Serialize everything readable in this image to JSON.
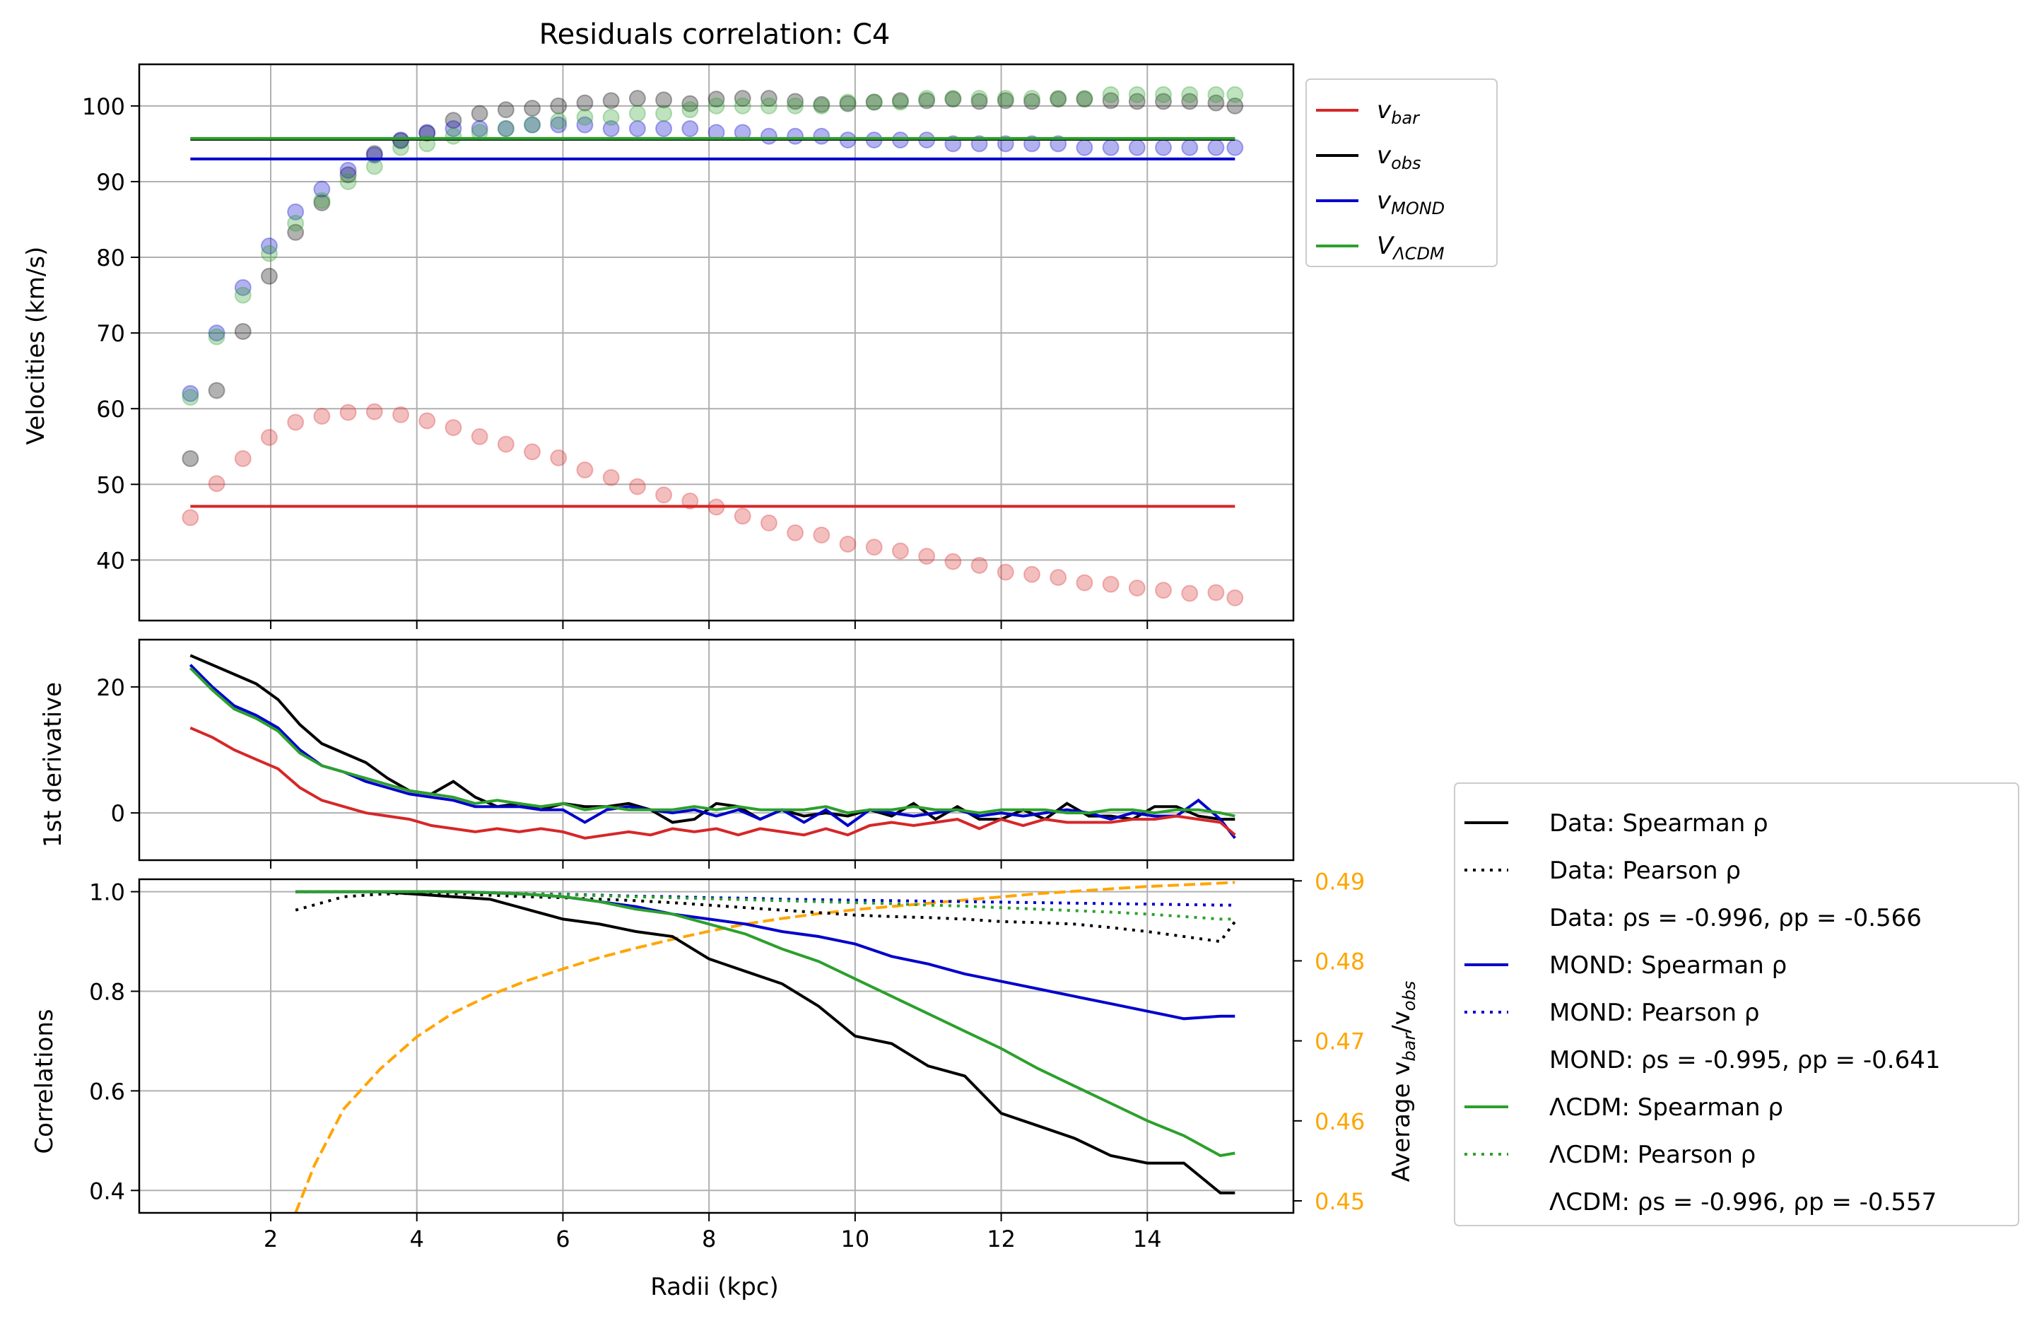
{
  "title": "Residuals correlation: C4",
  "colors": {
    "bar": "#d62728",
    "obs": "#000000",
    "mond": "#0000cc",
    "lcdm": "#2ca02c",
    "ratio": "#ffa500",
    "grid": "#b0b0b0"
  },
  "chart_data": [
    {
      "type": "scatter",
      "panel": "velocities",
      "title": "Residuals correlation: C4",
      "xlabel": "",
      "ylabel": "Velocities (km/s)",
      "xlim": [
        0.2,
        16.0
      ],
      "ylim": [
        32,
        105.5
      ],
      "yticks": [
        40,
        50,
        60,
        70,
        80,
        90,
        100
      ],
      "grid": true,
      "legend": "outside-right-top",
      "legend_entries": [
        {
          "base": "v",
          "sub": "bar",
          "color": "#d62728"
        },
        {
          "base": "v",
          "sub": "obs",
          "color": "#000000"
        },
        {
          "base": "v",
          "sub": "MOND",
          "color": "#0000cc"
        },
        {
          "base": "V",
          "sub": "ΛCDM",
          "color": "#2ca02c"
        }
      ],
      "x": [
        0.9,
        1.26,
        1.62,
        1.98,
        2.34,
        2.7,
        3.06,
        3.42,
        3.78,
        4.14,
        4.5,
        4.86,
        5.22,
        5.58,
        5.94,
        6.3,
        6.66,
        7.02,
        7.38,
        7.74,
        8.1,
        8.46,
        8.82,
        9.18,
        9.54,
        9.9,
        10.26,
        10.62,
        10.98,
        11.34,
        11.7,
        12.06,
        12.42,
        12.78,
        13.14,
        13.5,
        13.86,
        14.22,
        14.58,
        14.94,
        15.2
      ],
      "series": [
        {
          "name": "v_bar",
          "color": "#d62728",
          "points": [
            45.6,
            50.1,
            53.4,
            56.2,
            58.2,
            59.0,
            59.5,
            59.6,
            59.2,
            58.4,
            57.5,
            56.3,
            55.3,
            54.3,
            53.5,
            51.9,
            50.9,
            49.7,
            48.6,
            47.8,
            47.0,
            45.8,
            44.9,
            43.6,
            43.3,
            42.1,
            41.7,
            41.2,
            40.5,
            39.8,
            39.3,
            38.4,
            38.1,
            37.7,
            37.0,
            36.8,
            36.3,
            36.0,
            35.6,
            35.7,
            35.0
          ],
          "line": 47.1
        },
        {
          "name": "v_obs",
          "color": "#000000",
          "points": [
            53.4,
            62.4,
            70.2,
            77.5,
            83.3,
            87.2,
            90.9,
            93.7,
            95.4,
            96.4,
            98.1,
            99.0,
            99.5,
            99.7,
            100.0,
            100.4,
            100.7,
            101.0,
            100.8,
            100.3,
            100.9,
            101.0,
            101.0,
            100.6,
            100.2,
            100.3,
            100.5,
            100.7,
            100.7,
            100.9,
            100.6,
            100.7,
            100.6,
            100.9,
            100.9,
            100.7,
            100.6,
            100.6,
            100.6,
            100.4,
            100.0
          ],
          "line": 95.6
        },
        {
          "name": "v_MOND",
          "color": "#0000cc",
          "points": [
            62.0,
            70.0,
            76.0,
            81.5,
            86.0,
            89.0,
            91.5,
            93.5,
            95.5,
            96.5,
            97.0,
            97.0,
            97.0,
            97.5,
            97.5,
            97.5,
            97.0,
            97.0,
            97.0,
            97.0,
            96.5,
            96.5,
            96.0,
            96.0,
            96.0,
            95.5,
            95.5,
            95.5,
            95.5,
            95.0,
            95.0,
            95.0,
            95.0,
            95.0,
            94.5,
            94.5,
            94.5,
            94.5,
            94.5,
            94.5,
            94.5
          ],
          "line": 93.0
        },
        {
          "name": "V_LCDM",
          "color": "#2ca02c",
          "points": [
            61.5,
            69.5,
            75.0,
            80.5,
            84.5,
            87.5,
            90.0,
            92.0,
            94.5,
            95.0,
            96.0,
            96.5,
            97.0,
            97.5,
            98.0,
            98.5,
            98.5,
            99.0,
            99.0,
            99.5,
            100.0,
            100.0,
            100.0,
            100.0,
            100.0,
            100.5,
            100.5,
            100.5,
            101.0,
            101.0,
            101.0,
            101.0,
            101.0,
            101.0,
            101.0,
            101.5,
            101.5,
            101.5,
            101.5,
            101.5,
            101.5
          ],
          "line": 95.7
        }
      ]
    },
    {
      "type": "line",
      "panel": "derivative",
      "xlabel": "",
      "ylabel": "1st derivative",
      "xlim": [
        0.2,
        16.0
      ],
      "ylim": [
        -7.5,
        27.5
      ],
      "yticks": [
        0,
        20
      ],
      "grid": true,
      "x": [
        0.9,
        1.2,
        1.5,
        1.8,
        2.1,
        2.4,
        2.7,
        3.0,
        3.3,
        3.6,
        3.9,
        4.2,
        4.5,
        4.8,
        5.1,
        5.4,
        5.7,
        6.0,
        6.3,
        6.6,
        6.9,
        7.2,
        7.5,
        7.8,
        8.1,
        8.4,
        8.7,
        9.0,
        9.3,
        9.6,
        9.9,
        10.2,
        10.5,
        10.8,
        11.1,
        11.4,
        11.7,
        12.0,
        12.3,
        12.6,
        12.9,
        13.2,
        13.5,
        13.8,
        14.1,
        14.4,
        14.7,
        15.0,
        15.2
      ],
      "series": [
        {
          "name": "v_obs",
          "color": "#000000",
          "values": [
            25.0,
            23.5,
            22.0,
            20.5,
            18.0,
            14.0,
            11.0,
            9.5,
            8.0,
            5.5,
            3.5,
            3.0,
            5.0,
            2.5,
            1.0,
            1.5,
            0.5,
            1.5,
            1.0,
            1.0,
            1.5,
            0.5,
            -1.5,
            -1.0,
            1.5,
            1.0,
            -1.0,
            0.5,
            -0.5,
            0.0,
            -0.5,
            0.5,
            -0.5,
            1.5,
            -1.0,
            1.0,
            -1.0,
            -1.0,
            0.5,
            -1.0,
            1.5,
            -0.5,
            -0.5,
            -1.0,
            1.0,
            1.0,
            -0.5,
            -1.0,
            -1.0
          ]
        },
        {
          "name": "v_MOND",
          "color": "#0000cc",
          "values": [
            23.5,
            20.0,
            17.0,
            15.5,
            13.5,
            10.0,
            7.5,
            6.5,
            5.0,
            4.0,
            3.0,
            2.5,
            2.0,
            1.0,
            1.0,
            1.0,
            0.5,
            0.5,
            -1.5,
            0.5,
            1.0,
            0.5,
            0.0,
            0.5,
            -0.5,
            0.5,
            -1.0,
            0.5,
            -1.5,
            0.5,
            -2.0,
            0.5,
            0.0,
            -0.5,
            0.0,
            0.5,
            -0.5,
            0.0,
            -0.5,
            0.0,
            0.5,
            0.0,
            -1.0,
            0.0,
            -0.5,
            -0.5,
            2.0,
            -1.0,
            -4.0
          ]
        },
        {
          "name": "V_LCDM",
          "color": "#2ca02c",
          "values": [
            23.0,
            19.5,
            16.5,
            15.0,
            13.0,
            9.5,
            7.5,
            6.5,
            5.5,
            4.5,
            3.5,
            3.0,
            2.5,
            1.5,
            2.0,
            1.5,
            1.0,
            1.5,
            0.5,
            1.0,
            0.5,
            0.5,
            0.5,
            1.0,
            0.5,
            1.0,
            0.5,
            0.5,
            0.5,
            1.0,
            0.0,
            0.5,
            0.5,
            1.0,
            0.5,
            0.5,
            0.0,
            0.5,
            0.5,
            0.5,
            0.0,
            0.0,
            0.5,
            0.5,
            0.0,
            0.5,
            0.5,
            0.0,
            -0.5
          ]
        },
        {
          "name": "v_bar",
          "color": "#d62728",
          "values": [
            13.5,
            12.0,
            10.0,
            8.5,
            7.0,
            4.0,
            2.0,
            1.0,
            0.0,
            -0.5,
            -1.0,
            -2.0,
            -2.5,
            -3.0,
            -2.5,
            -3.0,
            -2.5,
            -3.0,
            -4.0,
            -3.5,
            -3.0,
            -3.5,
            -2.5,
            -3.0,
            -2.5,
            -3.5,
            -2.5,
            -3.0,
            -3.5,
            -2.5,
            -3.5,
            -2.0,
            -1.5,
            -2.0,
            -1.5,
            -1.0,
            -2.5,
            -1.0,
            -2.0,
            -1.0,
            -1.5,
            -1.5,
            -1.5,
            -1.0,
            -1.0,
            -0.5,
            -1.0,
            -1.5,
            -3.5
          ]
        }
      ]
    },
    {
      "type": "line",
      "panel": "correlations",
      "xlabel": "Radii (kpc)",
      "ylabel": "Correlations",
      "y2label_base": "Average v",
      "y2label_sub1": "bar",
      "y2label_mid": "/v",
      "y2label_sub2": "obs",
      "xlim": [
        0.2,
        16.0
      ],
      "xticks": [
        2,
        4,
        6,
        8,
        10,
        12,
        14
      ],
      "ylim": [
        0.355,
        1.025
      ],
      "yticks": [
        0.4,
        0.6,
        0.8,
        1.0
      ],
      "y2lim": [
        0.4485,
        0.4902
      ],
      "y2ticks": [
        0.45,
        0.46,
        0.47,
        0.48,
        0.49
      ],
      "grid": true,
      "legend": "outside-right-bottom",
      "legend_entries": [
        {
          "text": "Data: Spearman ρ",
          "color": "#000000",
          "style": "solid"
        },
        {
          "text": "Data: Pearson ρ",
          "color": "#000000",
          "style": "dotted"
        },
        {
          "text": "Data: ρs = -0.996, ρp = -0.566",
          "color": "",
          "style": "none"
        },
        {
          "text": "MOND: Spearman ρ",
          "color": "#0000cc",
          "style": "solid"
        },
        {
          "text": "MOND: Pearson ρ",
          "color": "#0000cc",
          "style": "dotted"
        },
        {
          "text": "MOND: ρs = -0.995, ρp = -0.641",
          "color": "",
          "style": "none"
        },
        {
          "text": "ΛCDM: Spearman ρ",
          "color": "#2ca02c",
          "style": "solid"
        },
        {
          "text": "ΛCDM: Pearson ρ",
          "color": "#2ca02c",
          "style": "dotted"
        },
        {
          "text": "ΛCDM: ρs = -0.996, ρp = -0.557",
          "color": "",
          "style": "none"
        }
      ],
      "x": [
        2.34,
        3.0,
        3.5,
        4.0,
        4.5,
        5.0,
        5.5,
        6.0,
        6.5,
        7.0,
        7.5,
        8.0,
        8.5,
        9.0,
        9.5,
        10.0,
        10.5,
        11.0,
        11.5,
        12.0,
        12.5,
        13.0,
        13.5,
        14.0,
        14.5,
        15.0,
        15.2
      ],
      "series": [
        {
          "name": "Data: Spearman ρ",
          "color": "#000000",
          "style": "solid",
          "values": [
            1.0,
            1.0,
            1.0,
            0.995,
            0.99,
            0.985,
            0.965,
            0.945,
            0.935,
            0.92,
            0.91,
            0.865,
            0.84,
            0.815,
            0.77,
            0.71,
            0.695,
            0.65,
            0.63,
            0.555,
            0.53,
            0.505,
            0.47,
            0.455,
            0.455,
            0.395,
            0.395
          ]
        },
        {
          "name": "Data: Pearson ρ",
          "color": "#000000",
          "style": "dotted",
          "values": [
            0.963,
            0.99,
            0.995,
            0.997,
            0.996,
            0.993,
            0.99,
            0.988,
            0.985,
            0.982,
            0.978,
            0.973,
            0.968,
            0.963,
            0.958,
            0.953,
            0.95,
            0.948,
            0.945,
            0.94,
            0.938,
            0.935,
            0.928,
            0.92,
            0.91,
            0.9,
            0.94
          ]
        },
        {
          "name": "MOND: Spearman ρ",
          "color": "#0000cc",
          "style": "solid",
          "values": [
            1.0,
            1.0,
            1.0,
            1.0,
            1.0,
            0.998,
            0.995,
            0.99,
            0.98,
            0.97,
            0.955,
            0.945,
            0.935,
            0.92,
            0.91,
            0.895,
            0.87,
            0.855,
            0.835,
            0.82,
            0.805,
            0.79,
            0.775,
            0.76,
            0.745,
            0.75,
            0.75
          ]
        },
        {
          "name": "MOND: Pearson ρ",
          "color": "#0000cc",
          "style": "dotted",
          "values": [
            1.0,
            1.0,
            1.0,
            1.0,
            0.999,
            0.998,
            0.996,
            0.995,
            0.993,
            0.991,
            0.99,
            0.988,
            0.987,
            0.985,
            0.984,
            0.983,
            0.982,
            0.981,
            0.98,
            0.979,
            0.978,
            0.977,
            0.976,
            0.975,
            0.974,
            0.973,
            0.973
          ]
        },
        {
          "name": "ΛCDM: Spearman ρ",
          "color": "#2ca02c",
          "style": "solid",
          "values": [
            1.0,
            1.0,
            1.0,
            1.0,
            1.0,
            0.998,
            0.995,
            0.99,
            0.98,
            0.965,
            0.955,
            0.935,
            0.915,
            0.885,
            0.86,
            0.825,
            0.79,
            0.755,
            0.72,
            0.685,
            0.645,
            0.61,
            0.575,
            0.54,
            0.51,
            0.47,
            0.475
          ]
        },
        {
          "name": "ΛCDM: Pearson ρ",
          "color": "#2ca02c",
          "style": "dotted",
          "values": [
            1.0,
            1.0,
            1.0,
            1.0,
            0.999,
            0.998,
            0.996,
            0.994,
            0.992,
            0.99,
            0.988,
            0.986,
            0.984,
            0.982,
            0.98,
            0.978,
            0.976,
            0.973,
            0.971,
            0.968,
            0.965,
            0.962,
            0.959,
            0.955,
            0.95,
            0.945,
            0.945
          ]
        }
      ],
      "ratio_series": {
        "name": "Average v_bar/v_obs",
        "color": "#ffa500",
        "style": "dashed",
        "axis": "right",
        "x": [
          2.34,
          2.6,
          3.0,
          3.5,
          4.0,
          4.5,
          5.0,
          5.5,
          6.0,
          6.5,
          7.0,
          7.5,
          8.0,
          8.5,
          9.0,
          9.5,
          10.0,
          10.5,
          11.0,
          11.5,
          12.0,
          12.5,
          13.0,
          13.5,
          14.0,
          14.5,
          15.2
        ],
        "values": [
          0.4485,
          0.4545,
          0.4615,
          0.4665,
          0.4705,
          0.4735,
          0.4757,
          0.4775,
          0.479,
          0.4804,
          0.4816,
          0.4827,
          0.4837,
          0.4846,
          0.4853,
          0.4859,
          0.4864,
          0.4868,
          0.4872,
          0.4876,
          0.488,
          0.4884,
          0.4887,
          0.489,
          0.4893,
          0.4895,
          0.4898
        ]
      }
    }
  ]
}
